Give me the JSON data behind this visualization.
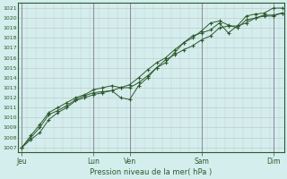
{
  "xlabel": "Pression niveau de la mer( hPa )",
  "bg_color": "#d4eeee",
  "grid_color_h": "#c0c0c0",
  "grid_color_v_major": "#9090a0",
  "grid_color_v_minor": "#c8c8d0",
  "line_color": "#2d5a2d",
  "ylim": [
    1006.5,
    1021.5
  ],
  "yticks": [
    1007,
    1008,
    1009,
    1010,
    1011,
    1012,
    1013,
    1014,
    1015,
    1016,
    1017,
    1018,
    1019,
    1020,
    1021
  ],
  "xtick_labels": [
    "Jeu",
    "",
    "Lun",
    "Ven",
    "",
    "Sam",
    "",
    "Dim"
  ],
  "xtick_positions": [
    0,
    1,
    2,
    3,
    4,
    5,
    6,
    7
  ],
  "major_vlines": [
    0,
    2,
    3,
    5,
    7
  ],
  "xlim": [
    -0.1,
    7.3
  ],
  "line1_x": [
    0.0,
    0.25,
    0.5,
    0.75,
    1.0,
    1.25,
    1.5,
    1.75,
    2.0,
    2.25,
    2.5,
    2.75,
    3.0,
    3.25,
    3.5,
    3.75,
    4.0,
    4.25,
    4.5,
    4.75,
    5.0,
    5.25,
    5.5,
    5.75,
    6.0,
    6.25,
    6.5,
    6.75,
    7.0,
    7.25
  ],
  "line1_y": [
    1007.0,
    1008.0,
    1009.0,
    1010.3,
    1010.7,
    1011.2,
    1011.8,
    1012.2,
    1012.5,
    1012.6,
    1012.7,
    1013.0,
    1013.0,
    1013.5,
    1014.2,
    1015.0,
    1015.8,
    1016.3,
    1016.8,
    1017.2,
    1017.8,
    1018.2,
    1019.0,
    1019.2,
    1019.2,
    1019.5,
    1020.0,
    1020.3,
    1020.3,
    1020.5
  ],
  "line2_x": [
    0.0,
    0.25,
    0.5,
    0.75,
    1.0,
    1.25,
    1.5,
    1.75,
    2.0,
    2.25,
    2.5,
    2.75,
    3.0,
    3.25,
    3.5,
    3.75,
    4.0,
    4.25,
    4.5,
    4.75,
    5.0,
    5.25,
    5.5,
    5.75,
    6.0,
    6.25,
    6.5,
    6.75,
    7.0,
    7.25
  ],
  "line2_y": [
    1007.0,
    1007.8,
    1008.5,
    1009.8,
    1010.5,
    1011.0,
    1011.7,
    1012.0,
    1012.3,
    1012.5,
    1012.7,
    1012.0,
    1011.8,
    1013.2,
    1014.0,
    1015.0,
    1015.5,
    1016.5,
    1017.5,
    1018.0,
    1018.7,
    1019.5,
    1019.7,
    1019.3,
    1019.0,
    1019.8,
    1020.0,
    1020.2,
    1020.2,
    1020.5
  ],
  "line3_x": [
    0.0,
    0.25,
    0.5,
    0.75,
    1.0,
    1.25,
    1.5,
    1.75,
    2.0,
    2.25,
    2.5,
    2.75,
    3.0,
    3.25,
    3.5,
    3.75,
    4.0,
    4.25,
    4.5,
    4.75,
    5.0,
    5.25,
    5.5,
    5.75,
    6.0,
    6.25,
    6.5,
    6.75,
    7.0,
    7.25
  ],
  "line3_y": [
    1007.0,
    1008.2,
    1009.3,
    1010.5,
    1011.0,
    1011.5,
    1012.0,
    1012.3,
    1012.8,
    1013.0,
    1013.2,
    1013.0,
    1013.3,
    1014.0,
    1014.8,
    1015.5,
    1016.0,
    1016.8,
    1017.5,
    1018.2,
    1018.5,
    1018.8,
    1019.5,
    1018.5,
    1019.2,
    1020.2,
    1020.4,
    1020.5,
    1021.0,
    1021.0
  ]
}
